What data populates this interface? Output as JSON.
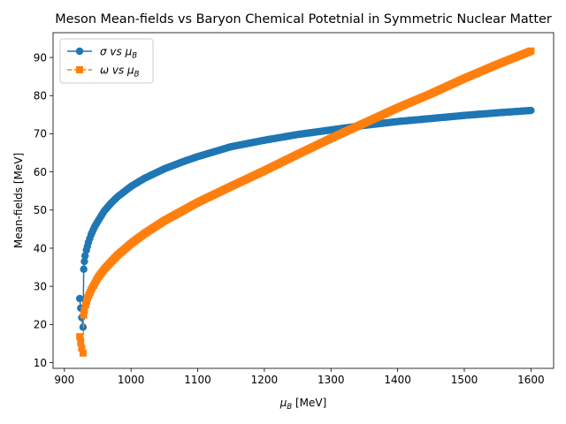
{
  "chart_data": {
    "type": "line",
    "title": "Meson Mean-fields vs Baryon Chemical Potetnial in Symmetric Nuclear Matter",
    "xlabel": "μ_B [MeV]",
    "ylabel": "Mean-fields [MeV]",
    "xlim": [
      883,
      1634
    ],
    "ylim": [
      8.5,
      96.5
    ],
    "xticks": [
      900,
      1000,
      1100,
      1200,
      1300,
      1400,
      1500,
      1600
    ],
    "yticks": [
      10,
      20,
      30,
      40,
      50,
      60,
      70,
      80,
      90
    ],
    "grid": false,
    "legend_position": "upper-left",
    "series": [
      {
        "name": "σ vs μ_B",
        "label_main": "σ vs μ",
        "label_sub": "B",
        "color": "#1f77b4",
        "marker": "circle",
        "line_style": "solid",
        "x": [
          923,
          926,
          928,
          929,
          930,
          931,
          933,
          936,
          940,
          945,
          950,
          960,
          970,
          980,
          1000,
          1020,
          1050,
          1080,
          1100,
          1150,
          1200,
          1250,
          1300,
          1350,
          1400,
          1450,
          1500,
          1550,
          1600
        ],
        "y": [
          26.8,
          21.8,
          19.3,
          34.5,
          36.5,
          38.0,
          39.5,
          41.5,
          43.5,
          45.5,
          47.0,
          49.8,
          51.8,
          53.5,
          56.2,
          58.3,
          60.8,
          62.8,
          64.0,
          66.6,
          68.3,
          69.8,
          71.0,
          72.2,
          73.2,
          74.0,
          74.8,
          75.5,
          76.1
        ]
      },
      {
        "name": "ω vs μ_B",
        "label_main": "ω vs μ",
        "label_sub": "B",
        "color": "#ff7f0e",
        "marker": "square",
        "line_style": "dashed",
        "x": [
          923,
          926,
          928,
          929,
          930,
          932,
          935,
          940,
          950,
          960,
          970,
          980,
          1000,
          1020,
          1050,
          1100,
          1150,
          1200,
          1250,
          1300,
          1350,
          1400,
          1450,
          1500,
          1550,
          1600
        ],
        "y": [
          16.8,
          13.8,
          12.5,
          22.5,
          23.8,
          25.2,
          27.0,
          29.0,
          32.2,
          34.5,
          36.4,
          38.2,
          41.2,
          43.8,
          47.2,
          52.0,
          56.2,
          60.3,
          64.6,
          68.8,
          72.8,
          76.8,
          80.5,
          84.5,
          88.2,
          91.7
        ]
      }
    ]
  }
}
